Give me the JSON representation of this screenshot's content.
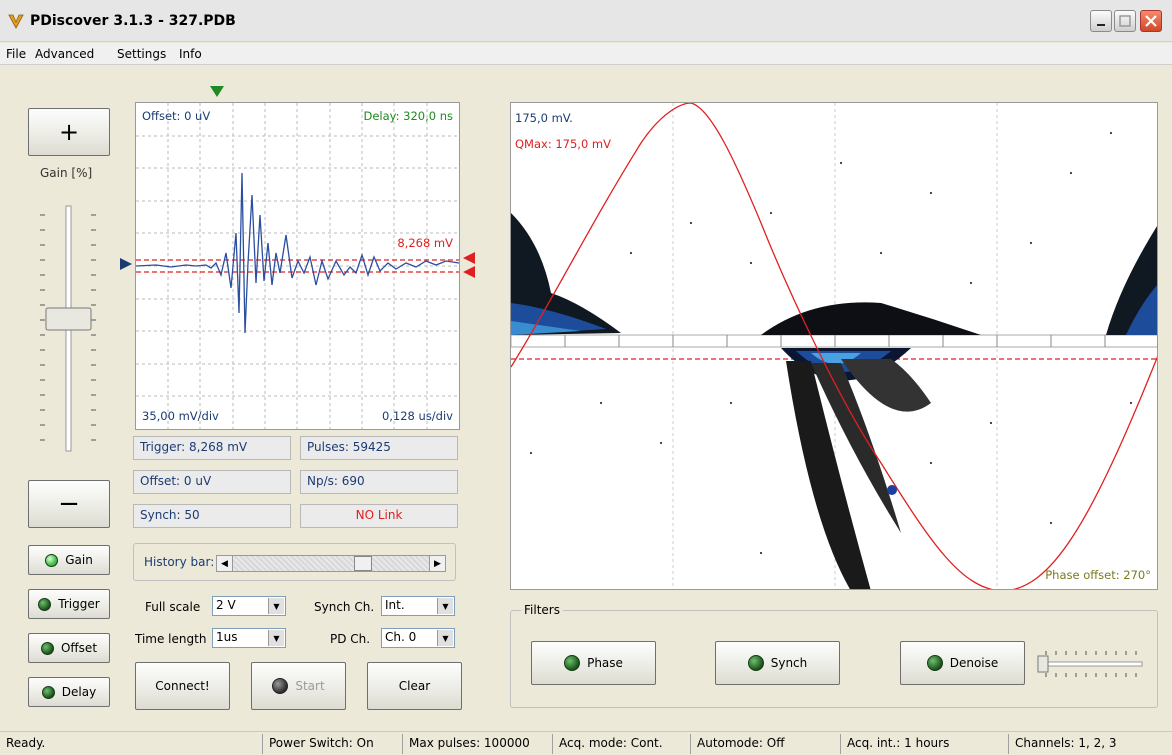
{
  "window": {
    "title": "PDiscover 3.1.3 - 327.PDB"
  },
  "menu": {
    "items": [
      "File",
      "Advanced",
      "Settings",
      "Info"
    ]
  },
  "gain": {
    "plus_label": "+",
    "minus_label": "−",
    "title": "Gain [%]"
  },
  "led_buttons": [
    {
      "label": "Gain",
      "state": "on"
    },
    {
      "label": "Trigger",
      "state": "off"
    },
    {
      "label": "Offset",
      "state": "off"
    },
    {
      "label": "Delay",
      "state": "off"
    }
  ],
  "scope": {
    "offset": "Offset: 0 uV",
    "delay": "Delay: 320,0 ns",
    "trigger_level": "8,268 mV",
    "vdiv": "35,00 mV/div",
    "tdiv": "0,128 us/div"
  },
  "info": {
    "trigger": "Trigger: 8,268 mV",
    "pulses": "Pulses: 59425",
    "offset": "Offset: 0 uV",
    "nps": "Np/s: 690",
    "synch": "Synch: 50",
    "link": "NO Link"
  },
  "history": {
    "label": "History bar:"
  },
  "controls": {
    "full_scale_label": "Full scale",
    "full_scale_value": "2 V",
    "time_length_label": "Time length",
    "time_length_value": "1us",
    "synch_ch_label": "Synch Ch.",
    "synch_ch_value": "Int.",
    "pd_ch_label": "PD Ch.",
    "pd_ch_value": "Ch. 0"
  },
  "buttons": {
    "connect": "Connect!",
    "start": "Start",
    "clear": "Clear"
  },
  "prpd": {
    "scale": "175,0 mV.",
    "qmax": "QMax: 175,0 mV",
    "phase_offset": "Phase offset: 270°"
  },
  "filters": {
    "title": "Filters",
    "phase": "Phase",
    "synch": "Synch",
    "denoise": "Denoise"
  },
  "status": [
    "Ready.",
    "Power Switch: On",
    "Max pulses: 100000",
    "Acq. mode: Cont.",
    "Automode: Off",
    "Acq. int.: 1 hours",
    "Channels: 1, 2, 3"
  ],
  "colors": {
    "accent_red": "#e02020",
    "wave_blue": "#2a4ea0",
    "label_blue": "#1b3c73",
    "delay_green": "#1f8a1f",
    "phase_olive": "#7a7a20"
  }
}
